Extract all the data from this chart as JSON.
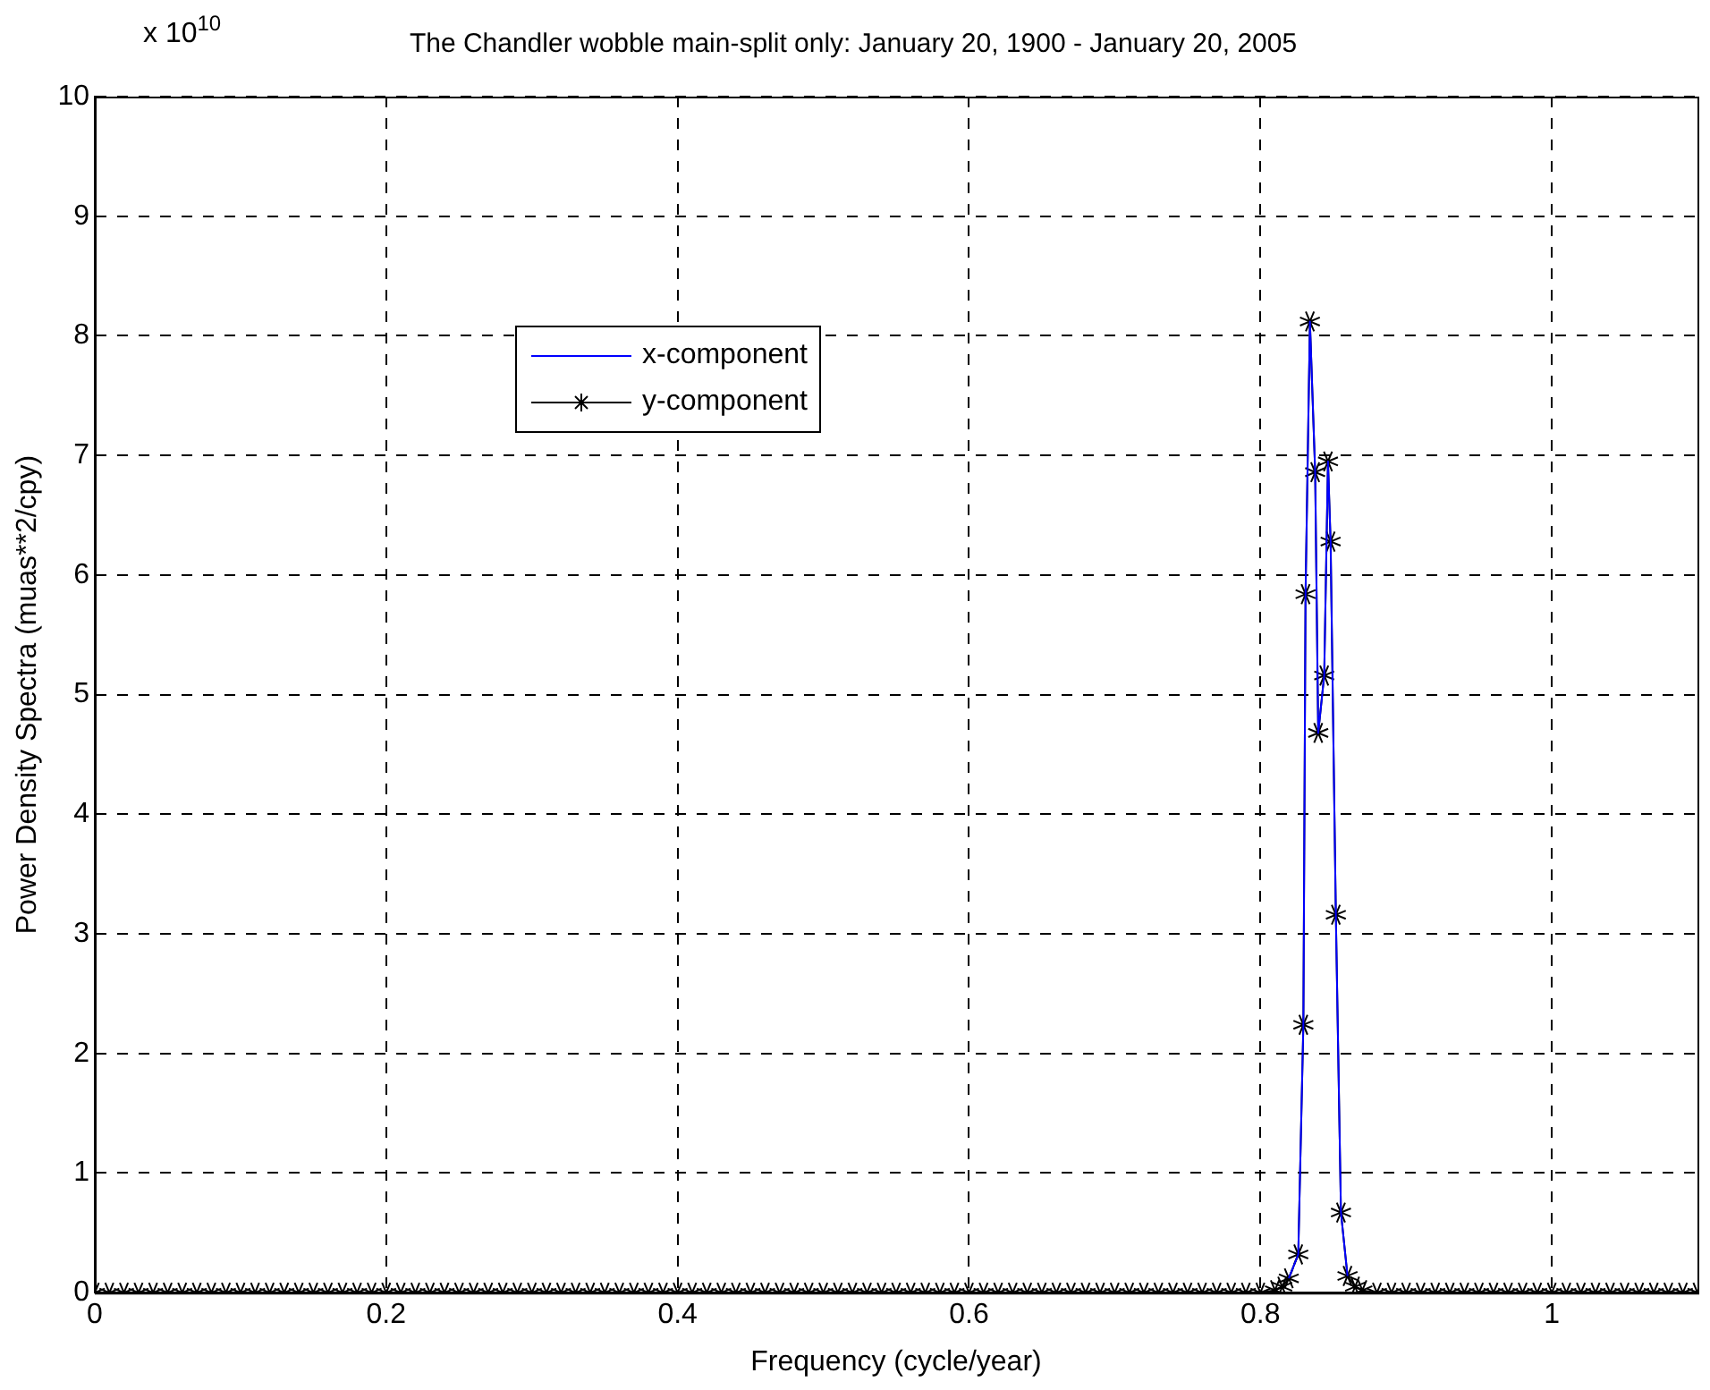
{
  "chart_data": {
    "type": "line",
    "title": "The Chandler wobble main-split only: January 20, 1900 - January 20, 2005",
    "xlabel": "Frequency (cycle/year)",
    "ylabel": "Power Density Spectra (muas**2/cpy)",
    "annotations": [
      "x 10$^{10}$"
    ],
    "x": [
      0,
      0.01,
      0.02,
      0.03,
      0.04,
      0.05,
      0.06,
      0.07,
      0.08,
      0.09,
      0.1,
      0.11,
      0.12,
      0.13,
      0.14,
      0.15,
      0.16,
      0.17,
      0.18,
      0.19,
      0.2,
      0.21,
      0.22,
      0.23,
      0.24,
      0.25,
      0.26,
      0.27,
      0.28,
      0.29,
      0.3,
      0.31,
      0.32,
      0.33,
      0.34,
      0.35,
      0.36,
      0.37,
      0.38,
      0.39,
      0.4,
      0.41,
      0.42,
      0.43,
      0.44,
      0.45,
      0.46,
      0.47,
      0.48,
      0.49,
      0.5,
      0.51,
      0.52,
      0.53,
      0.54,
      0.55,
      0.56,
      0.57,
      0.58,
      0.59,
      0.6,
      0.61,
      0.62,
      0.63,
      0.64,
      0.65,
      0.66,
      0.67,
      0.68,
      0.69,
      0.7,
      0.71,
      0.72,
      0.73,
      0.74,
      0.75,
      0.76,
      0.77,
      0.78,
      0.79,
      0.8,
      0.81,
      0.815,
      0.8195,
      0.826,
      0.8295,
      0.831,
      0.834,
      0.8376,
      0.8397,
      0.8438,
      0.8464,
      0.8482,
      0.8518,
      0.8553,
      0.8598,
      0.865,
      0.87,
      0.88,
      0.89,
      0.9,
      0.91,
      0.92,
      0.93,
      0.94,
      0.95,
      0.96,
      0.97,
      0.98,
      0.99,
      1,
      1.01,
      1.02,
      1.03,
      1.04,
      1.05,
      1.06,
      1.07,
      1.08,
      1.09,
      1.1
    ],
    "series": [
      {
        "name": "x-component",
        "color": "#0000ff",
        "marker": "none",
        "values": [
          null,
          null,
          null,
          null,
          null,
          null,
          null,
          null,
          null,
          null,
          null,
          null,
          null,
          null,
          null,
          null,
          null,
          null,
          null,
          null,
          null,
          null,
          null,
          null,
          null,
          null,
          null,
          null,
          null,
          null,
          null,
          null,
          null,
          null,
          null,
          null,
          null,
          null,
          null,
          null,
          null,
          null,
          null,
          null,
          null,
          null,
          null,
          null,
          null,
          null,
          null,
          null,
          null,
          null,
          null,
          null,
          null,
          null,
          null,
          null,
          null,
          null,
          null,
          null,
          null,
          null,
          null,
          null,
          null,
          null,
          null,
          null,
          null,
          null,
          null,
          null,
          null,
          null,
          null,
          null,
          null,
          null,
          null,
          0.12,
          0.32,
          2.24,
          5.84,
          8.12,
          6.86,
          4.68,
          5.16,
          6.95,
          6.28,
          3.16,
          0.67,
          0.14,
          null,
          null,
          null,
          null,
          null,
          null,
          null,
          null,
          null,
          null,
          null,
          null,
          null,
          null,
          null,
          null,
          null,
          null,
          null,
          null,
          null,
          null,
          null,
          null,
          null
        ]
      },
      {
        "name": "y-component",
        "color": "#000000",
        "marker": "cross",
        "values": [
          0,
          0,
          0,
          0,
          0,
          0,
          0,
          0,
          0,
          0,
          0,
          0,
          0,
          0,
          0,
          0,
          0,
          0,
          0,
          0,
          0,
          0,
          0,
          0,
          0,
          0,
          0,
          0,
          0,
          0,
          0,
          0,
          0,
          0,
          0,
          0,
          0,
          0,
          0,
          0,
          0,
          0,
          0,
          0,
          0,
          0,
          0,
          0,
          0,
          0,
          0,
          0,
          0,
          0,
          0,
          0,
          0,
          0,
          0,
          0,
          0,
          0,
          0,
          0,
          0,
          0,
          0,
          0,
          0,
          0,
          0,
          0,
          0,
          0,
          0,
          0,
          0,
          0,
          0,
          0,
          0,
          0.02,
          0.05,
          0.12,
          0.32,
          2.24,
          5.84,
          8.12,
          6.86,
          4.68,
          5.16,
          6.95,
          6.28,
          3.16,
          0.67,
          0.14,
          0.05,
          0.02,
          0,
          0,
          0,
          0,
          0,
          0,
          0,
          0,
          0,
          0,
          0,
          0,
          0,
          0,
          0,
          0,
          0,
          0,
          0,
          0,
          0,
          0,
          0
        ]
      }
    ],
    "xlim": [
      0,
      1.1
    ],
    "xticks": [
      0,
      0.2,
      0.4,
      0.6,
      0.8,
      1
    ],
    "ylim": [
      0,
      10
    ],
    "yticks": [
      0,
      1,
      2,
      3,
      4,
      5,
      6,
      7,
      8,
      9,
      10
    ],
    "grid": true,
    "legend": "top left",
    "line_style": "solid"
  }
}
